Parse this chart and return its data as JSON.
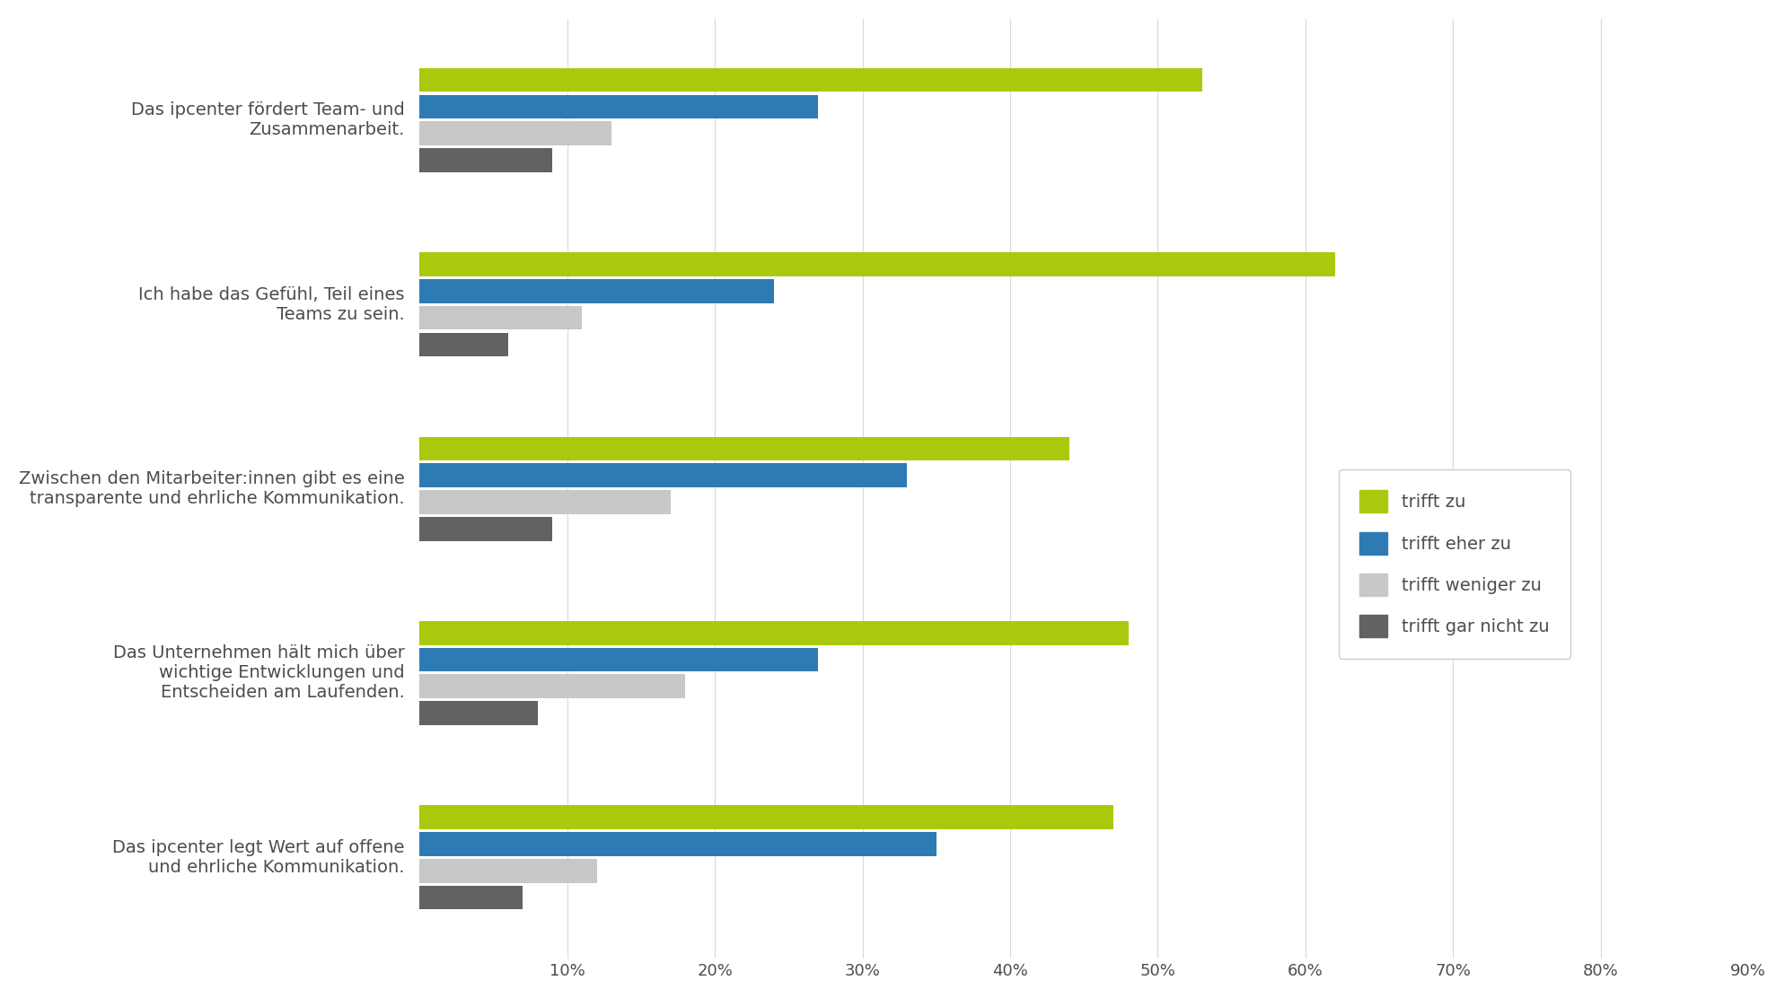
{
  "categories": [
    "Das ipcenter fördert Team- und\nZusammenarbeit.",
    "Ich habe das Gefühl, Teil eines\nTeams zu sein.",
    "Zwischen den Mitarbeiter:innen gibt es eine\ntransparente und ehrliche Kommunikation.",
    "Das Unternehmen hält mich über\nwichtige Entwicklungen und\nEntscheiden am Laufenden.",
    "Das ipcenter legt Wert auf offene\nund ehrliche Kommunikation."
  ],
  "series": {
    "trifft zu": [
      53,
      62,
      44,
      48,
      47
    ],
    "trifft eher zu": [
      27,
      24,
      33,
      27,
      35
    ],
    "trifft weniger zu": [
      13,
      11,
      17,
      18,
      12
    ],
    "trifft gar nicht zu": [
      9,
      6,
      9,
      8,
      7
    ]
  },
  "colors": {
    "trifft zu": "#aac90e",
    "trifft eher zu": "#2e7bb4",
    "trifft weniger zu": "#c8c8c8",
    "trifft gar nicht zu": "#626262"
  },
  "xlim": [
    0,
    90
  ],
  "xticks": [
    10,
    20,
    30,
    40,
    50,
    60,
    70,
    80,
    90
  ],
  "xtick_labels": [
    "10%",
    "20%",
    "30%",
    "40%",
    "50%",
    "60%",
    "70%",
    "80%",
    "90%"
  ],
  "background_color": "#ffffff",
  "text_color": "#4d4d4d",
  "grid_color": "#d9d9d9",
  "bar_height": 0.13,
  "bar_gap": 0.015
}
